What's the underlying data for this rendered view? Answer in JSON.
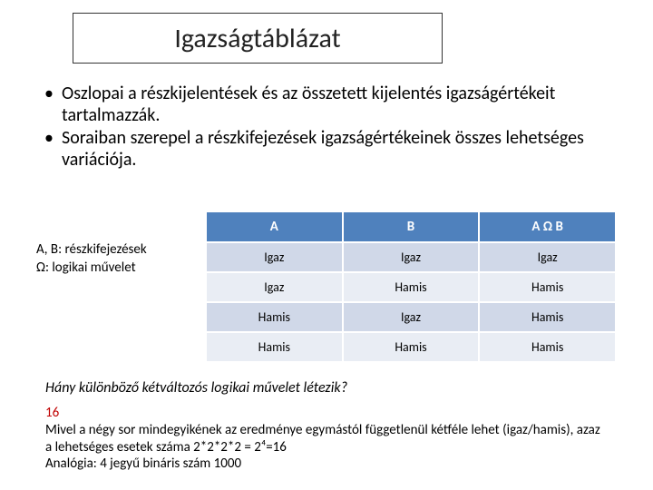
{
  "title": "Igazságtáblázat",
  "bullets": {
    "b1": "Oszlopai a részkijelentések és az összetett kijelentés igazságértékeit tartalmazzák.",
    "b2": "Soraiban szerepel a részkifejezések igazságértékeinek összes lehetséges variációja."
  },
  "legend": {
    "line1": "A, B: részkifejezések",
    "line2": "Ω: logikai művelet"
  },
  "table": {
    "h1": "A",
    "h2": "B",
    "h3": "A Ω B",
    "r1c1": "Igaz",
    "r1c2": "Igaz",
    "r1c3": "Igaz",
    "r2c1": "Igaz",
    "r2c2": "Hamis",
    "r2c3": "Hamis",
    "r3c1": "Hamis",
    "r3c2": "Igaz",
    "r3c3": "Hamis",
    "r4c1": "Hamis",
    "r4c2": "Hamis",
    "r4c3": "Hamis"
  },
  "question": "Hány különböző kétváltozós logikai művelet létezik?",
  "answer": {
    "num": "16",
    "line2": "Mivel a négy sor mindegyikének az eredménye egymástól függetlenül kétféle lehet (igaz/hamis), azaz a lehetséges esetek száma 2*2*2*2 = 2⁴=16",
    "line3": "Analógia: 4 jegyű bináris szám 1000"
  },
  "colors": {
    "header_bg": "#4f81bd",
    "row_bg": "#e9edf4",
    "row_alt_bg": "#d0d8e8",
    "answer_num": "#c00000",
    "border": "#333333"
  }
}
